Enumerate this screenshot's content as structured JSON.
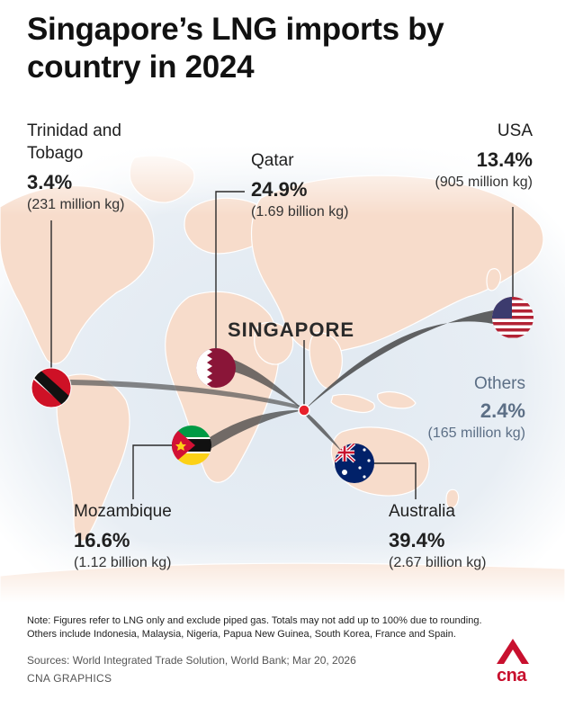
{
  "title": "Singapore’s LNG imports by country in 2024",
  "hub": "SINGAPORE",
  "countries": {
    "trinidad": {
      "name": "Trinidad and Tobago",
      "name_line1": "Trinidad and",
      "name_line2": "Tobago",
      "pct": "3.4%",
      "amount": "(231 million kg)",
      "flag": "trinidad-and-tobago-flag"
    },
    "qatar": {
      "name": "Qatar",
      "pct": "24.9%",
      "amount": "(1.69 billion kg)",
      "flag": "qatar-flag"
    },
    "usa": {
      "name": "USA",
      "pct": "13.4%",
      "amount": "(905 million kg)",
      "flag": "usa-flag"
    },
    "others": {
      "name": "Others",
      "pct": "2.4%",
      "amount": "(165 million kg)"
    },
    "mozambique": {
      "name": "Mozambique",
      "pct": "16.6%",
      "amount": "(1.12 billion kg)",
      "flag": "mozambique-flag"
    },
    "australia": {
      "name": "Australia",
      "pct": "39.4%",
      "amount": "(2.67 billion kg)",
      "flag": "australia-flag"
    }
  },
  "note": "Note: Figures refer to LNG only and exclude piped gas. Totals may not add up to 100% due to rounding. Others include Indonesia, Malaysia, Nigeria, Papua New Guinea, South Korea, France and Spain.",
  "sources": "Sources: World Integrated Trade Solution, World Bank; Mar 20, 2026",
  "credit": "CNA GRAPHICS",
  "logo_text": "cna",
  "colors": {
    "land": "#f7dfcf",
    "ocean": "#e4ecf3",
    "hub_dot": "#e8202b",
    "brand": "#c8102e",
    "others_text": "#5c6f86"
  }
}
